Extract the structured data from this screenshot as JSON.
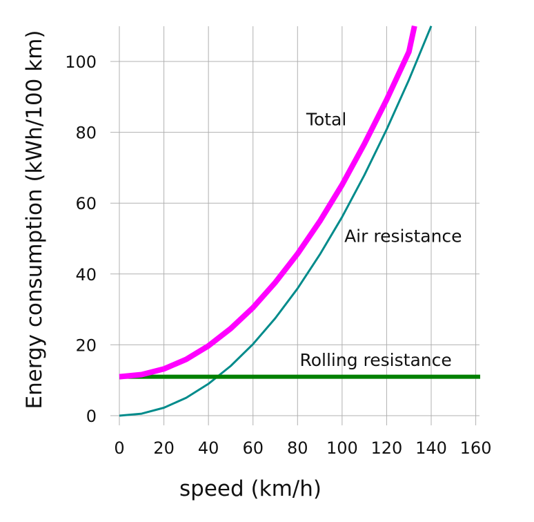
{
  "chart_data": {
    "type": "line",
    "title": "",
    "xlabel": "speed (km/h)",
    "ylabel": "Energy consumption (kWh/100 km)",
    "xlim": [
      0,
      162
    ],
    "ylim": [
      -3,
      110
    ],
    "xticks": [
      0,
      20,
      40,
      60,
      80,
      100,
      120,
      140,
      160
    ],
    "yticks": [
      0,
      20,
      40,
      60,
      80,
      100
    ],
    "grid": true,
    "legend": "none",
    "series": [
      {
        "name": "Total",
        "color": "#ff00ff",
        "x": [
          0,
          10,
          20,
          30,
          40,
          50,
          60,
          70,
          80,
          90,
          100,
          110,
          120,
          130,
          132.5
        ],
        "y": [
          11,
          11.6,
          13.2,
          15.9,
          19.7,
          24.6,
          30.5,
          37.6,
          45.7,
          54.9,
          65.2,
          76.7,
          89.2,
          102.7,
          110
        ]
      },
      {
        "name": "Air resistance",
        "color": "#008b8b",
        "x": [
          0,
          10,
          20,
          30,
          40,
          50,
          60,
          70,
          80,
          90,
          100,
          110,
          120,
          130,
          140
        ],
        "y": [
          0,
          0.56,
          2.24,
          5.05,
          8.98,
          14.03,
          20.2,
          27.5,
          35.9,
          45.5,
          56.1,
          67.9,
          80.8,
          94.8,
          110
        ]
      },
      {
        "name": "Rolling resistance",
        "color": "#008000",
        "x": [
          0,
          162
        ],
        "y": [
          11,
          11
        ]
      }
    ],
    "annotations": [
      {
        "text": "Total",
        "x": 102,
        "y": 82,
        "anchor": "end"
      },
      {
        "text": "Air resistance",
        "x": 101,
        "y": 49,
        "anchor": "start"
      },
      {
        "text": "Rolling resistance",
        "x": 81,
        "y": 14,
        "anchor": "start"
      }
    ]
  }
}
